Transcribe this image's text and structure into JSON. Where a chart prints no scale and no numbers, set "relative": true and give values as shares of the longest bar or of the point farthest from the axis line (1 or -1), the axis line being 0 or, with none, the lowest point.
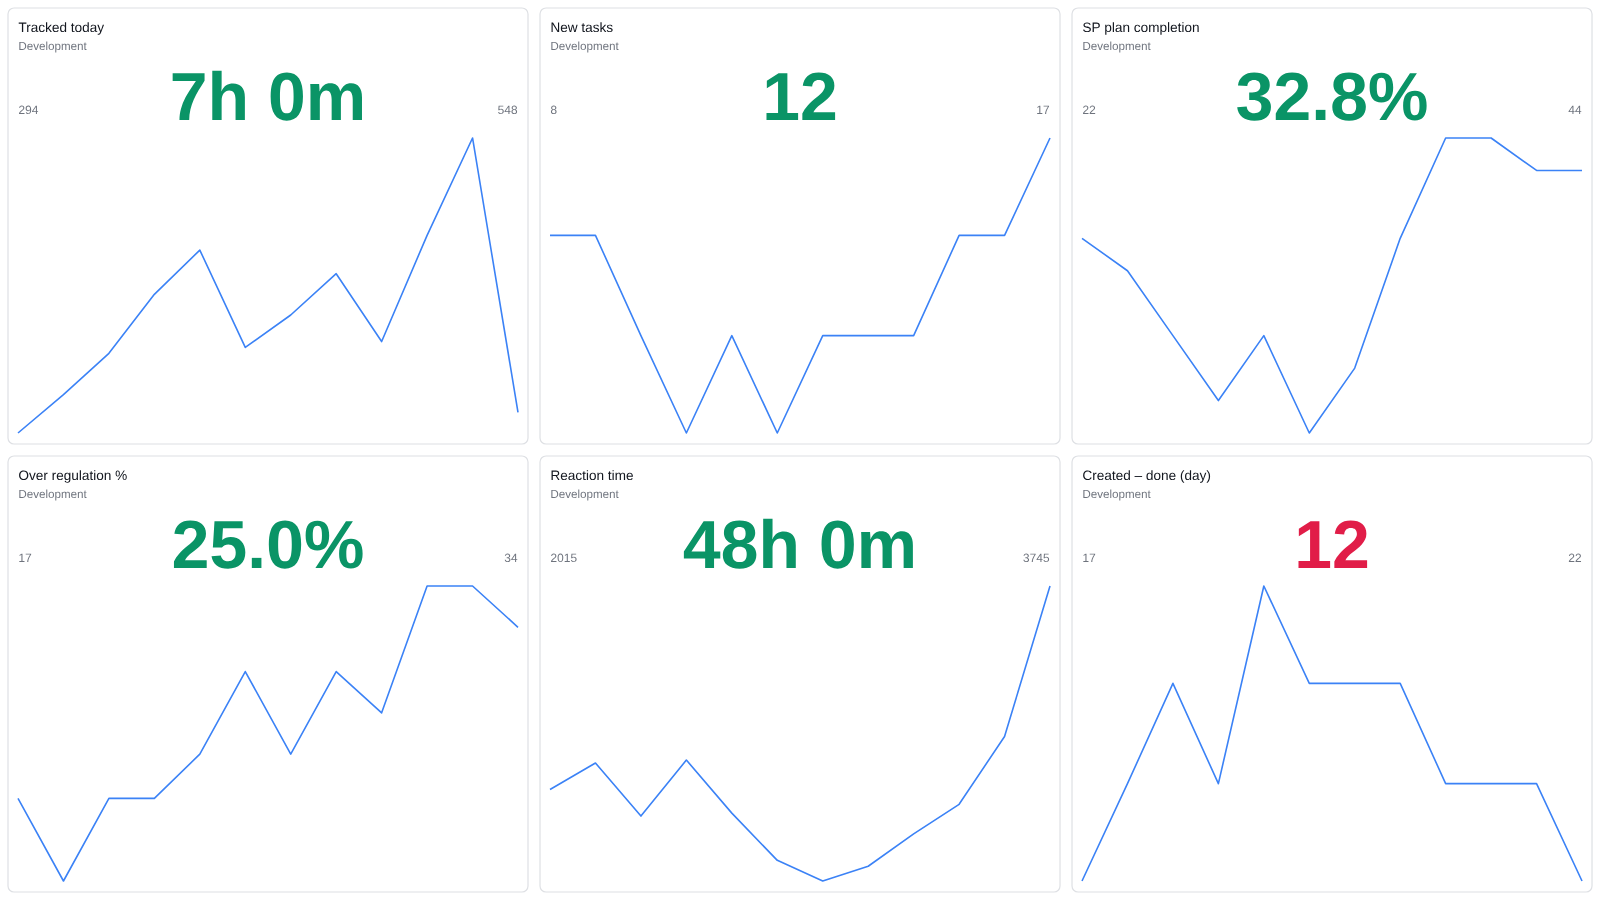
{
  "chart_data": [
    {
      "type": "line",
      "title": "Tracked today",
      "subtitle": "Development",
      "annotations": [
        "7h 0m",
        "294",
        "548"
      ],
      "relative": true,
      "color": "#3b82f6",
      "categories": [
        null,
        null,
        null,
        null,
        null,
        null,
        null,
        null,
        null,
        null,
        null,
        null
      ],
      "values": [
        0,
        0.13,
        0.27,
        0.47,
        0.62,
        0.29,
        0.4,
        0.54,
        0.31,
        0.67,
        1,
        0.07
      ]
    },
    {
      "type": "line",
      "title": "New tasks",
      "subtitle": "Development",
      "annotations": [
        "12",
        "8",
        "17"
      ],
      "relative": true,
      "color": "#3b82f6",
      "categories": [
        null,
        null,
        null,
        null,
        null,
        null,
        null,
        null,
        null,
        null,
        null,
        null
      ],
      "values": [
        0.67,
        0.67,
        0.33,
        0,
        0.33,
        0,
        0.33,
        0.33,
        0.33,
        0.67,
        0.67,
        1
      ]
    },
    {
      "type": "line",
      "title": "SP plan completion",
      "subtitle": "Development",
      "annotations": [
        "32.8%",
        "22",
        "44"
      ],
      "relative": true,
      "color": "#3b82f6",
      "categories": [
        null,
        null,
        null,
        null,
        null,
        null,
        null,
        null,
        null,
        null,
        null,
        null
      ],
      "values": [
        0.66,
        0.55,
        0.33,
        0.11,
        0.33,
        0,
        0.22,
        0.66,
        1,
        1,
        0.89,
        0.89
      ]
    },
    {
      "type": "line",
      "title": "Over regulation %",
      "subtitle": "Development",
      "annotations": [
        "25.0%",
        "17",
        "34"
      ],
      "relative": true,
      "color": "#3b82f6",
      "categories": [
        null,
        null,
        null,
        null,
        null,
        null,
        null,
        null,
        null,
        null,
        null,
        null
      ],
      "values": [
        0.28,
        0,
        0.28,
        0.28,
        0.43,
        0.71,
        0.43,
        0.71,
        0.57,
        1,
        1,
        0.86
      ]
    },
    {
      "type": "line",
      "title": "Reaction time",
      "subtitle": "Development",
      "annotations": [
        "48h 0m",
        "2015",
        "3745"
      ],
      "relative": true,
      "color": "#3b82f6",
      "categories": [
        null,
        null,
        null,
        null,
        null,
        null,
        null,
        null,
        null,
        null,
        null,
        null
      ],
      "values": [
        0.31,
        0.4,
        0.22,
        0.41,
        0.23,
        0.07,
        0,
        0.05,
        0.16,
        0.26,
        0.49,
        1
      ]
    },
    {
      "type": "line",
      "title": "Created – done (day)",
      "subtitle": "Development",
      "annotations": [
        "12",
        "17",
        "22"
      ],
      "relative": true,
      "color": "#3b82f6",
      "categories": [
        null,
        null,
        null,
        null,
        null,
        null,
        null,
        null,
        null,
        null,
        null,
        null
      ],
      "values": [
        0,
        0.33,
        0.67,
        0.33,
        1,
        0.67,
        0.67,
        0.67,
        0.33,
        0.33,
        0.33,
        0
      ]
    }
  ]
}
